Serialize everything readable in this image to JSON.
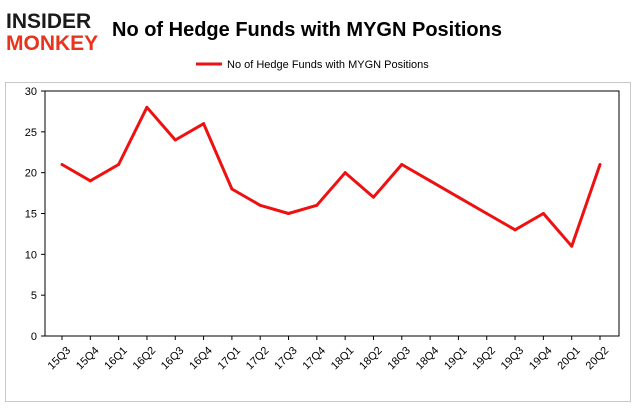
{
  "logo": {
    "line1": "INSIDER",
    "line2": "MONKEY",
    "color_dark": "#1a1a1a",
    "color_red": "#e8341c"
  },
  "chart_data": {
    "type": "line",
    "title": "No of Hedge Funds with MYGN Positions",
    "xlabel": "",
    "ylabel": "",
    "categories": [
      "15Q3",
      "15Q4",
      "16Q1",
      "16Q2",
      "16Q3",
      "16Q4",
      "17Q1",
      "17Q2",
      "17Q3",
      "17Q4",
      "18Q1",
      "18Q2",
      "18Q3",
      "18Q4",
      "19Q1",
      "19Q2",
      "19Q3",
      "19Q4",
      "20Q1",
      "20Q2"
    ],
    "series": [
      {
        "name": "No of Hedge Funds with MYGN Positions",
        "color": "#ee1111",
        "values": [
          21,
          19,
          21,
          28,
          24,
          26,
          18,
          16,
          15,
          16,
          20,
          17,
          21,
          19,
          17,
          15,
          13,
          15,
          11,
          21
        ]
      }
    ],
    "ylim": [
      0,
      30
    ],
    "yticks": [
      0,
      5,
      10,
      15,
      20,
      25,
      30
    ],
    "grid": false,
    "legend_position": "top-center"
  }
}
